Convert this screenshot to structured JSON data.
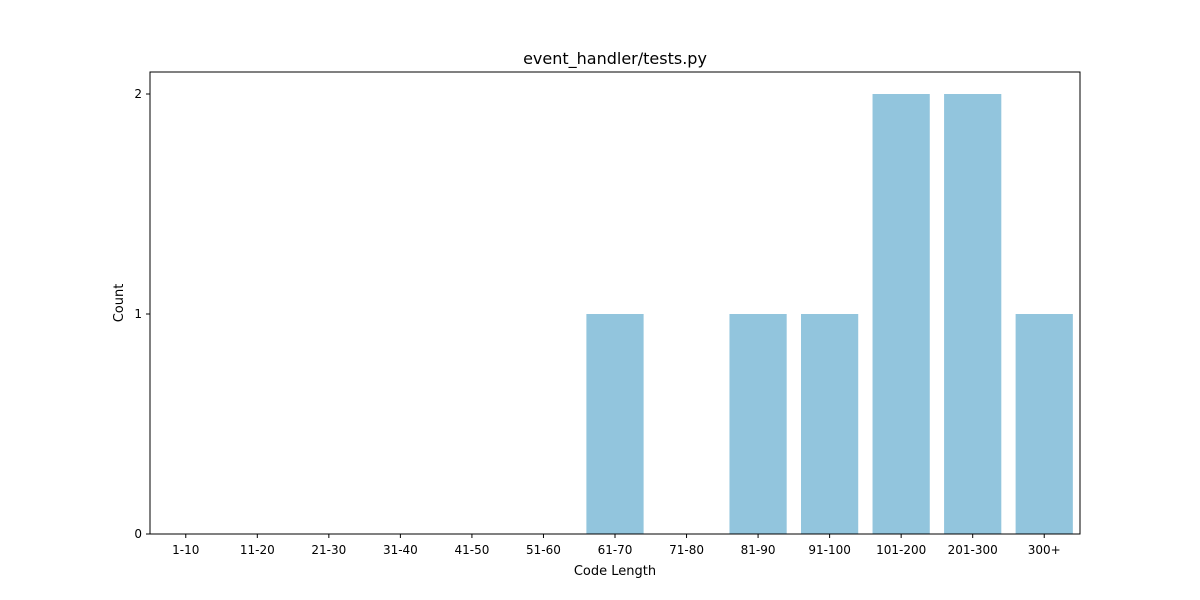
{
  "chart_data": {
    "type": "bar",
    "title": "event_handler/tests.py",
    "xlabel": "Code Length",
    "ylabel": "Count",
    "categories": [
      "1-10",
      "11-20",
      "21-30",
      "31-40",
      "41-50",
      "51-60",
      "61-70",
      "71-80",
      "81-90",
      "91-100",
      "101-200",
      "201-300",
      "300+"
    ],
    "values": [
      0,
      0,
      0,
      0,
      0,
      0,
      1,
      0,
      1,
      1,
      2,
      2,
      1
    ],
    "ylim": [
      0,
      2.1
    ],
    "yticks": [
      0,
      1,
      2
    ],
    "bar_color": "#92c5dd",
    "grid": false,
    "legend": null
  }
}
